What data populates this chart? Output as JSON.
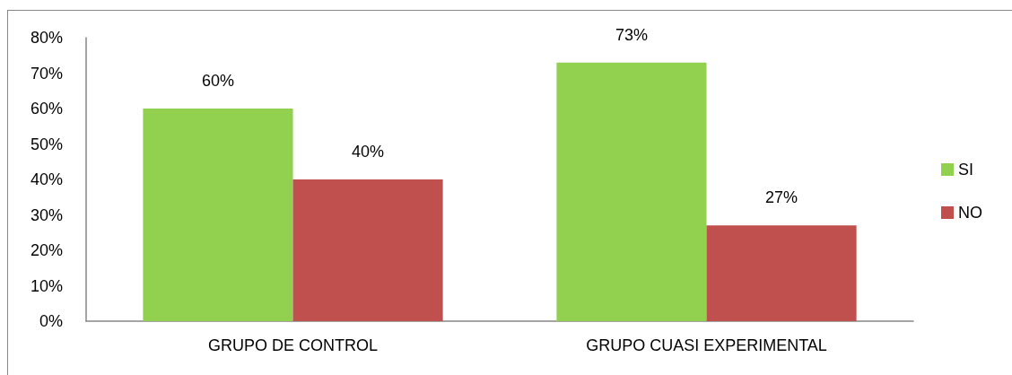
{
  "chart_data": {
    "type": "bar",
    "categories": [
      "GRUPO DE CONTROL",
      "GRUPO CUASI EXPERIMENTAL"
    ],
    "series": [
      {
        "name": "SI",
        "color": "#92d050",
        "values": [
          60,
          73
        ],
        "value_labels": [
          "60%",
          "73%"
        ]
      },
      {
        "name": "NO",
        "color": "#c0504d",
        "values": [
          40,
          27
        ],
        "value_labels": [
          "40%",
          "27%"
        ]
      }
    ],
    "ylim": [
      0,
      80
    ],
    "yticks": [
      {
        "value": 0,
        "label": "0%"
      },
      {
        "value": 10,
        "label": "10%"
      },
      {
        "value": 20,
        "label": "20%"
      },
      {
        "value": 30,
        "label": "30%"
      },
      {
        "value": 40,
        "label": "40%"
      },
      {
        "value": 50,
        "label": "50%"
      },
      {
        "value": 60,
        "label": "60%"
      },
      {
        "value": 70,
        "label": "70%"
      },
      {
        "value": 80,
        "label": "80%"
      }
    ],
    "grid": false,
    "legend": "right"
  }
}
